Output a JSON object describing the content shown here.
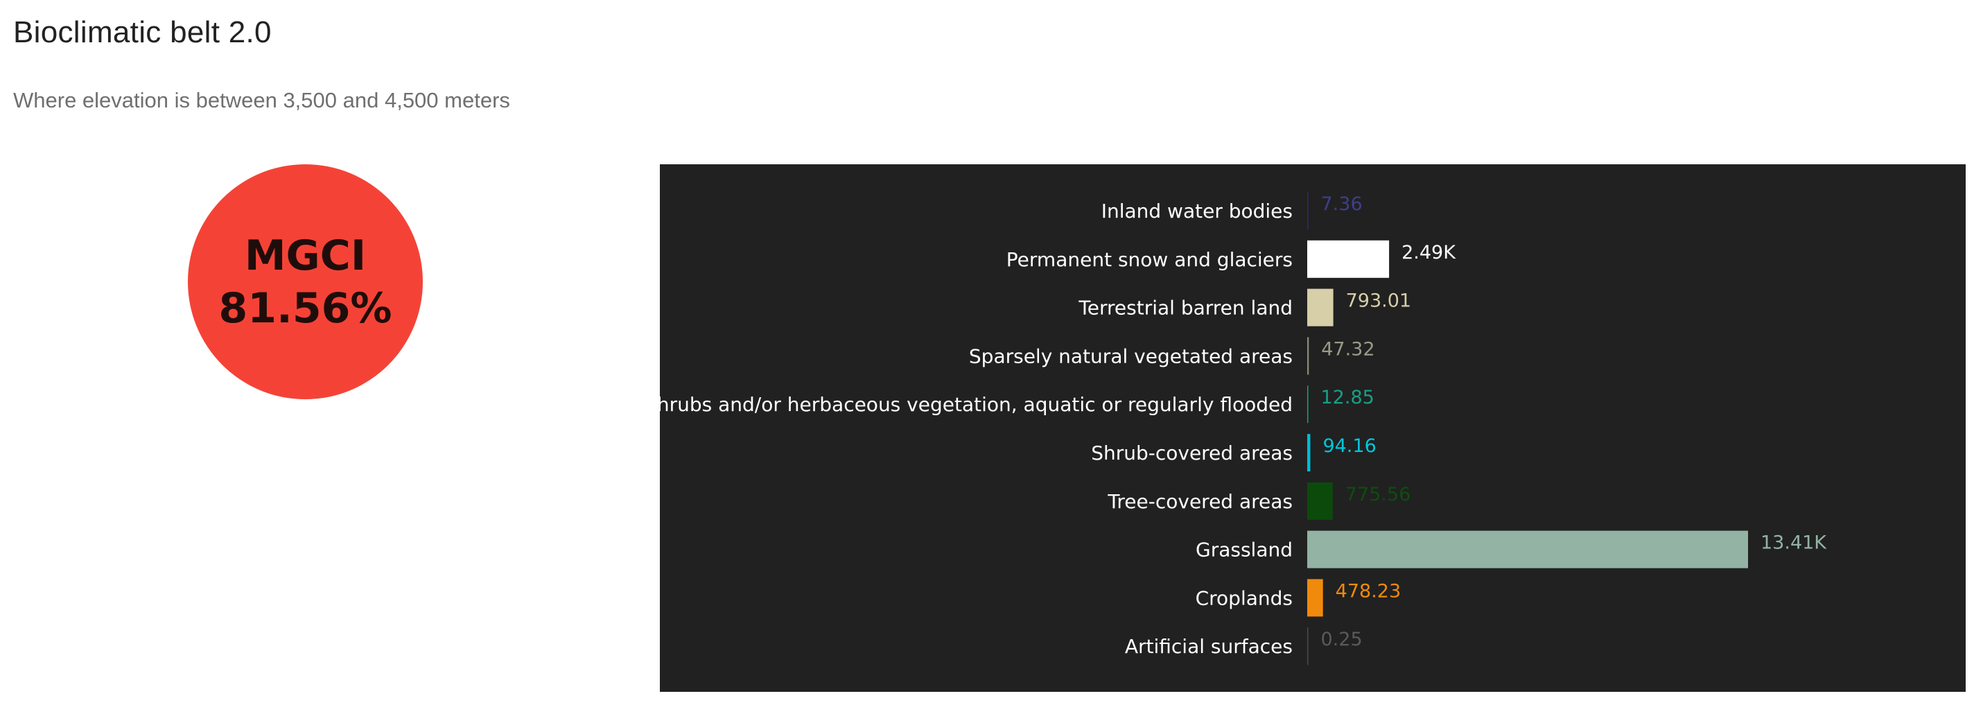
{
  "header": {
    "title": "Bioclimatic belt 2.0",
    "subtitle": "Where elevation is between 3,500 and 4,500 meters"
  },
  "mgci": {
    "label": "MGCI",
    "value_text": "81.56%",
    "color": "#f44336"
  },
  "chart_background": "#212121",
  "chart_data": {
    "type": "bar",
    "orientation": "horizontal",
    "title": "",
    "xlabel": "",
    "ylabel": "",
    "categories": [
      "Inland water bodies",
      "Permanent snow and glaciers",
      "Terrestrial barren land",
      "Sparsely natural vegetated areas",
      "Shrubs and/or herbaceous vegetation, aquatic or regularly flooded",
      "Shrub-covered areas",
      "Tree-covered areas",
      "Grassland",
      "Croplands",
      "Artificial surfaces"
    ],
    "values": [
      7.36,
      2490,
      793.01,
      47.32,
      12.85,
      94.16,
      775.56,
      13410,
      478.23,
      0.25
    ],
    "value_labels": [
      "7.36",
      "2.49K",
      "793.01",
      "47.32",
      "12.85",
      "94.16",
      "775.56",
      "13.41K",
      "478.23",
      "0.25"
    ],
    "colors": [
      "#2a2a6e",
      "#ffffff",
      "#d6cfa8",
      "#8c8c78",
      "#16a085",
      "#00bcd4",
      "#0c4a0c",
      "#93b3a4",
      "#f08a0c",
      "#4a4a4a"
    ],
    "label_colors": [
      "#3e3e8c",
      "#ffffff",
      "#d6cfa8",
      "#9a9a88",
      "#16a085",
      "#00c8dc",
      "#0e4d0e",
      "#93b3a4",
      "#f08a0c",
      "#5a5a5a"
    ],
    "grid": false,
    "legend": "none"
  }
}
